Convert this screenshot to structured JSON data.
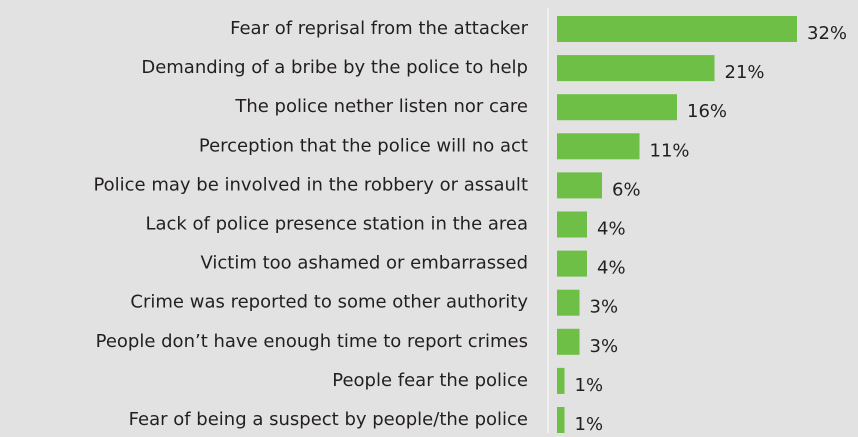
{
  "chart_data": {
    "type": "bar",
    "orientation": "horizontal",
    "categories": [
      "Fear of reprisal from the attacker",
      "Demanding of a bribe by the police to help",
      "The police nether listen nor care",
      "Perception that the police will no act",
      "Police may be involved in the robbery or assault",
      "Lack of police presence station in the area",
      "Victim too ashamed or embarrassed",
      "Crime was reported to some other authority",
      "People don’t have enough time to report crimes",
      "People fear the police",
      "Fear of being a suspect by people/the police"
    ],
    "values": [
      32,
      21,
      16,
      11,
      6,
      4,
      4,
      3,
      3,
      1,
      1
    ],
    "value_labels": [
      "32%",
      "21%",
      "16%",
      "11%",
      "6%",
      "4%",
      "4%",
      "3%",
      "3%",
      "1%",
      "1%"
    ],
    "color": "#6dbf45"
  }
}
